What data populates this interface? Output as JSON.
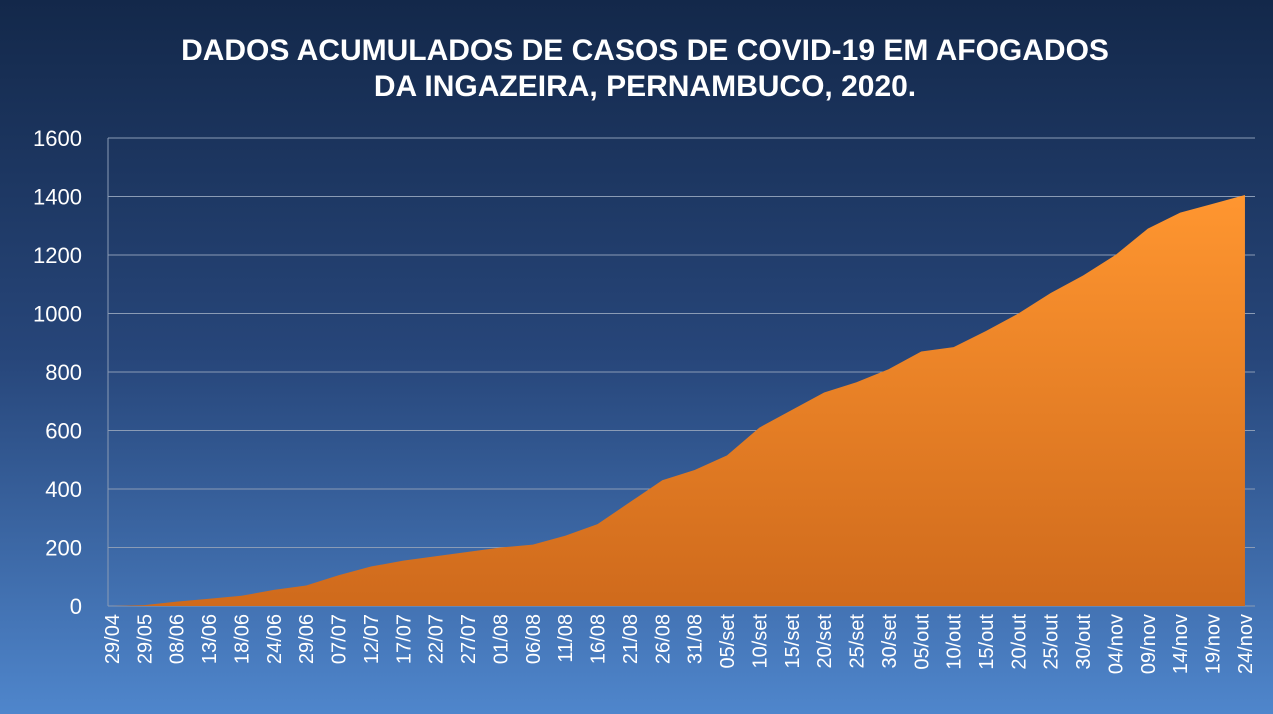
{
  "chart_data": {
    "type": "area",
    "title": [
      "DADOS ACUMULADOS DE CASOS DE COVID-19 EM AFOGADOS",
      "DA INGAZEIRA, PERNAMBUCO, 2020."
    ],
    "categories": [
      "29/04",
      "29/05",
      "08/06",
      "13/06",
      "18/06",
      "24/06",
      "29/06",
      "07/07",
      "12/07",
      "17/07",
      "22/07",
      "27/07",
      "01/08",
      "06/08",
      "11/08",
      "16/08",
      "21/08",
      "26/08",
      "31/08",
      "05/set",
      "10/set",
      "15/set",
      "20/set",
      "25/set",
      "30/set",
      "05/out",
      "10/out",
      "15/out",
      "20/out",
      "25/out",
      "30/out",
      "04/nov",
      "09/nov",
      "14/nov",
      "19/nov",
      "24/nov"
    ],
    "values": [
      0,
      3,
      15,
      25,
      35,
      55,
      70,
      105,
      135,
      155,
      170,
      185,
      200,
      210,
      240,
      280,
      355,
      430,
      465,
      515,
      610,
      670,
      730,
      765,
      810,
      870,
      885,
      940,
      1000,
      1070,
      1130,
      1200,
      1290,
      1345,
      1375,
      1405
    ],
    "color": "#f08c2a",
    "ylim": [
      0,
      1600
    ],
    "yticks": [
      0,
      200,
      400,
      600,
      800,
      1000,
      1200,
      1400,
      1600
    ],
    "grid": true
  }
}
